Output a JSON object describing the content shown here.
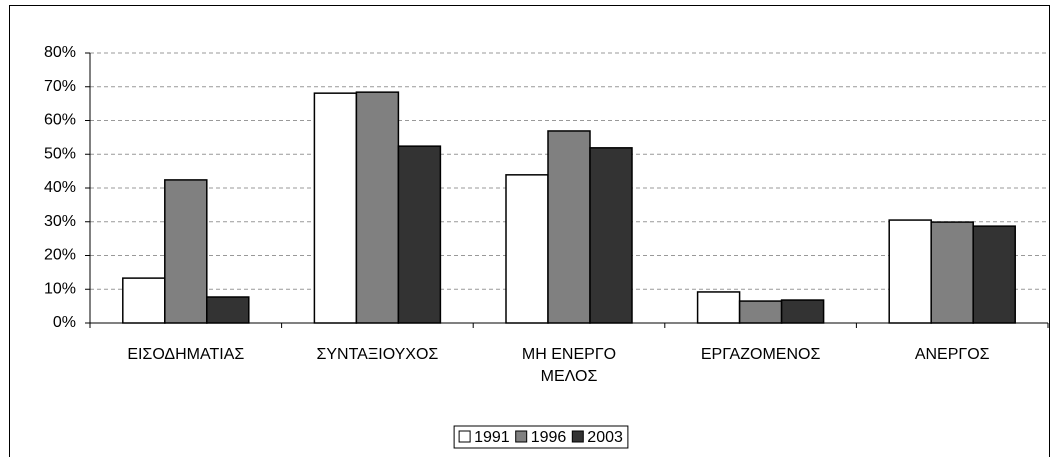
{
  "chart_data": {
    "type": "bar",
    "categories": [
      "ΕΙΣΟΔΗΜΑΤΙΑΣ",
      "ΣΥΝΤΑΞΙΟΥΧΟΣ",
      "ΜΗ ΕΝΕΡΓΟ ΜΕΛΟΣ",
      "ΕΡΓΑΖΟΜΕΝΟΣ",
      "ΑΝΕΡΓΟΣ"
    ],
    "series": [
      {
        "name": "1991",
        "color": "#ffffff",
        "values": [
          13.3,
          68.1,
          43.9,
          9.2,
          30.5
        ]
      },
      {
        "name": "1996",
        "color": "#808080",
        "values": [
          42.4,
          68.4,
          56.9,
          6.5,
          29.9
        ]
      },
      {
        "name": "2003",
        "color": "#333333",
        "values": [
          7.7,
          52.4,
          51.9,
          6.8,
          28.7
        ]
      }
    ],
    "ylim": [
      0,
      80
    ],
    "yticks": [
      {
        "value": 0,
        "label": "0%"
      },
      {
        "value": 10,
        "label": "10%"
      },
      {
        "value": 20,
        "label": "20%"
      },
      {
        "value": 30,
        "label": "30%"
      },
      {
        "value": 40,
        "label": "40%"
      },
      {
        "value": 50,
        "label": "50%"
      },
      {
        "value": 60,
        "label": "60%"
      },
      {
        "value": 70,
        "label": "70%"
      },
      {
        "value": 80,
        "label": "80%"
      }
    ],
    "grid": true,
    "legend": "bottom"
  }
}
